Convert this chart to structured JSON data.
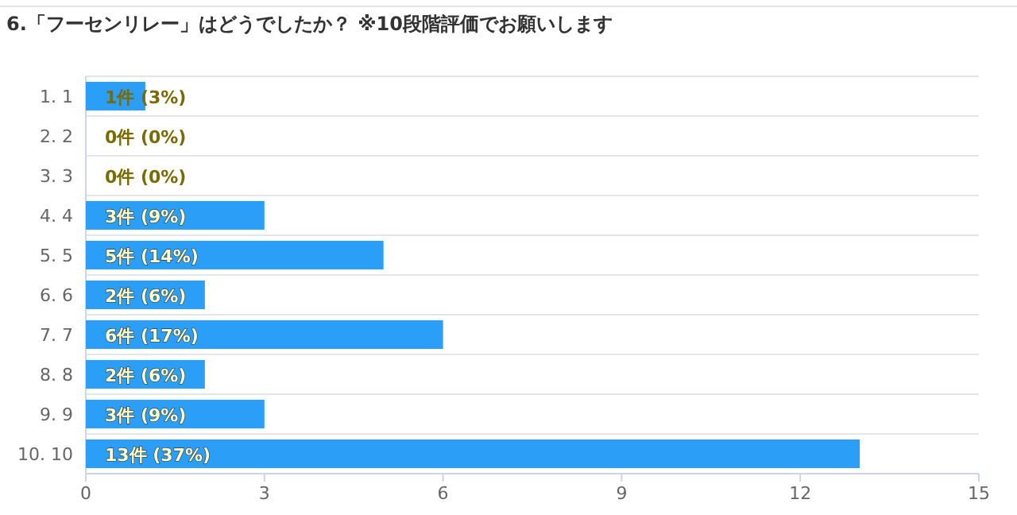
{
  "chart_data": {
    "type": "bar",
    "orientation": "horizontal",
    "title": "6.「フーセンリレー」はどうでしたか？ ※10段階評価でお願いします",
    "categories": [
      "1. 1",
      "2. 2",
      "3. 3",
      "4. 4",
      "5. 5",
      "6. 6",
      "7. 7",
      "8. 8",
      "9. 9",
      "10. 10"
    ],
    "values": [
      1,
      0,
      0,
      3,
      5,
      2,
      6,
      2,
      3,
      13
    ],
    "value_labels": [
      "1件 (3%)",
      "0件 (0%)",
      "0件 (0%)",
      "3件 (9%)",
      "5件 (14%)",
      "2件 (6%)",
      "6件 (17%)",
      "2件 (6%)",
      "3件 (9%)",
      "13件 (37%)"
    ],
    "color": "#2b9ef8",
    "xlim": [
      0,
      15
    ],
    "xticks": [
      0,
      3,
      6,
      9,
      12,
      15
    ],
    "grid": "y"
  }
}
